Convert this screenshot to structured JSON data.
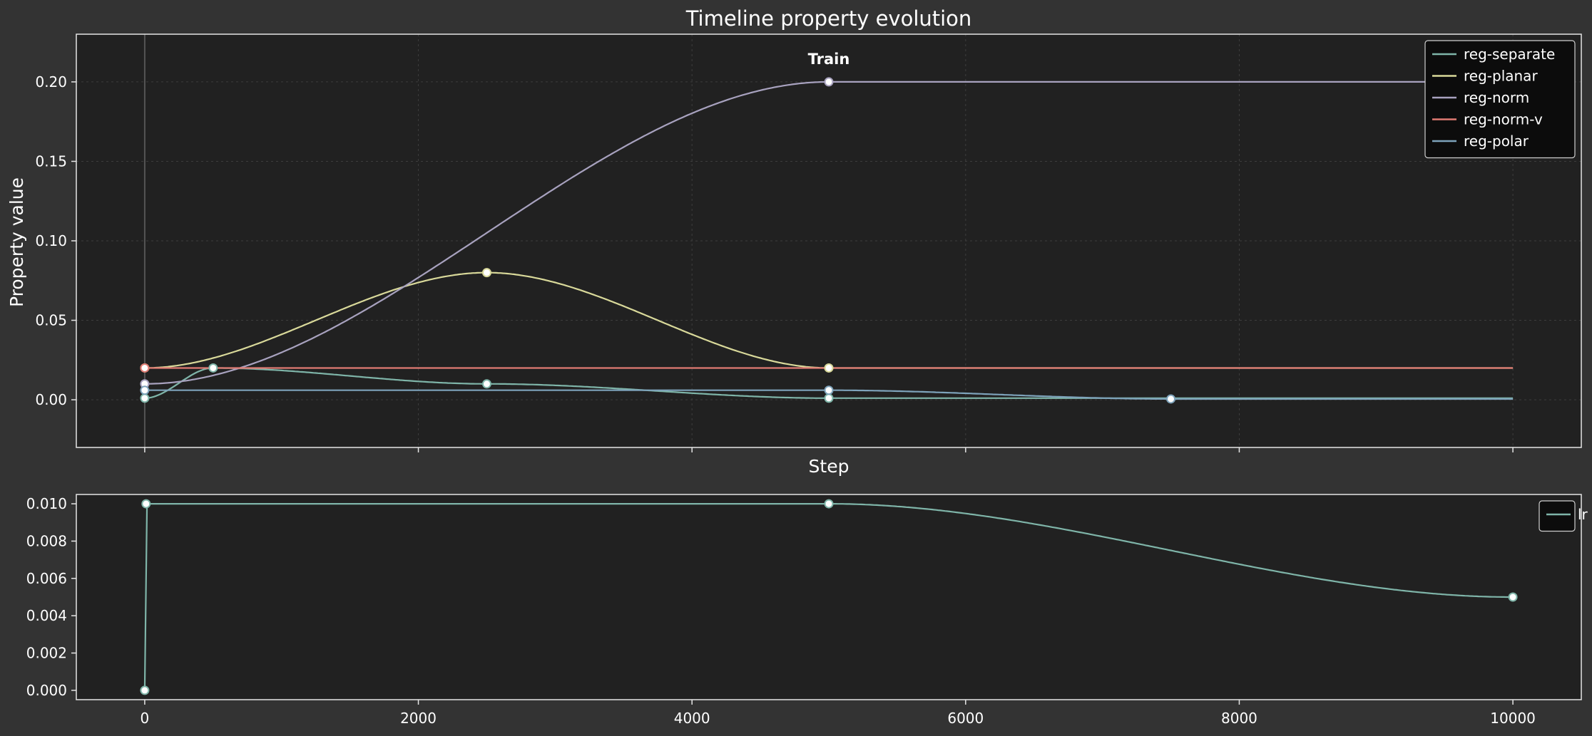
{
  "chart_data": [
    {
      "type": "line",
      "title": "Timeline property evolution",
      "xlabel": "Step",
      "ylabel": "Property value",
      "xlim": [
        -500,
        10500
      ],
      "ylim": [
        -0.03,
        0.23
      ],
      "xticks": [
        0,
        2000,
        4000,
        6000,
        8000,
        10000
      ],
      "yticks": [
        0.0,
        0.05,
        0.1,
        0.15,
        0.2
      ],
      "ytick_labels": [
        "0.00",
        "0.05",
        "0.10",
        "0.15",
        "0.20"
      ],
      "grid": true,
      "legend_position": "top-right",
      "annotation": {
        "text": "Train",
        "x": 5000
      },
      "series": [
        {
          "name": "reg-separate",
          "color": "#7fb5a9",
          "keyframes": [
            [
              0,
              0.001
            ],
            [
              500,
              0.02
            ],
            [
              2500,
              0.01
            ],
            [
              5000,
              0.001
            ],
            [
              10000,
              0.001
            ]
          ]
        },
        {
          "name": "reg-planar",
          "color": "#d9d99a",
          "keyframes": [
            [
              0,
              0.02
            ],
            [
              2500,
              0.08
            ],
            [
              5000,
              0.02
            ],
            [
              10000,
              0.02
            ]
          ]
        },
        {
          "name": "reg-norm",
          "color": "#a8a2bf",
          "keyframes": [
            [
              0,
              0.01
            ],
            [
              5000,
              0.2
            ],
            [
              10000,
              0.2
            ]
          ]
        },
        {
          "name": "reg-norm-v",
          "color": "#e07b73",
          "keyframes": [
            [
              0,
              0.02
            ],
            [
              10000,
              0.02
            ]
          ]
        },
        {
          "name": "reg-polar",
          "color": "#7ea3bb",
          "keyframes": [
            [
              0,
              0.006
            ],
            [
              5000,
              0.006
            ],
            [
              7500,
              0.0005
            ],
            [
              10000,
              0.0005
            ]
          ]
        }
      ]
    },
    {
      "type": "line",
      "title": "",
      "xlabel": "",
      "ylabel": "",
      "xlim": [
        -500,
        10500
      ],
      "ylim": [
        -0.0005,
        0.0105
      ],
      "xticks": [
        0,
        2000,
        4000,
        6000,
        8000,
        10000
      ],
      "xtick_labels": [
        "0",
        "2000",
        "4000",
        "6000",
        "8000",
        "10000"
      ],
      "yticks": [
        0.0,
        0.002,
        0.004,
        0.006,
        0.008,
        0.01
      ],
      "ytick_labels": [
        "0.000",
        "0.002",
        "0.004",
        "0.006",
        "0.008",
        "0.010"
      ],
      "grid": false,
      "legend_position": "top-right",
      "series": [
        {
          "name": "lr",
          "color": "#7fb5a9",
          "keyframes": [
            [
              0,
              0.0
            ],
            [
              10,
              0.01
            ],
            [
              5000,
              0.01
            ],
            [
              10000,
              0.005
            ]
          ]
        }
      ]
    }
  ]
}
